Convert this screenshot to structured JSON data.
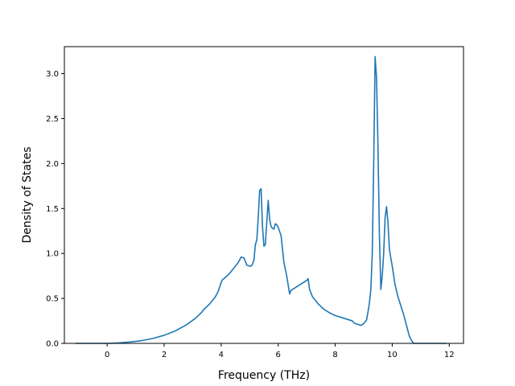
{
  "chart_data": {
    "type": "line",
    "title": "",
    "xlabel": "Frequency (THz)",
    "ylabel": "Density of States",
    "xlim": [
      -1.5,
      12.5
    ],
    "ylim": [
      0.0,
      3.3
    ],
    "xticks": [
      0,
      2,
      4,
      6,
      8,
      10,
      12
    ],
    "xtick_labels": [
      "0",
      "2",
      "4",
      "6",
      "8",
      "10",
      "12"
    ],
    "yticks": [
      0.0,
      0.5,
      1.0,
      1.5,
      2.0,
      2.5,
      3.0
    ],
    "ytick_labels": [
      "0.0",
      "0.5",
      "1.0",
      "1.5",
      "2.0",
      "2.5",
      "3.0"
    ],
    "grid": false,
    "series": [
      {
        "color": "#1f77b4",
        "x": [
          -1.1,
          -0.5,
          0.0,
          0.4,
          0.8,
          1.2,
          1.6,
          2.0,
          2.4,
          2.8,
          3.1,
          3.3,
          3.4,
          3.6,
          3.8,
          3.9,
          4.0,
          4.05,
          4.1,
          4.3,
          4.5,
          4.6,
          4.7,
          4.8,
          4.9,
          5.0,
          5.05,
          5.1,
          5.15,
          5.2,
          5.25,
          5.3,
          5.35,
          5.4,
          5.45,
          5.5,
          5.55,
          5.6,
          5.65,
          5.7,
          5.75,
          5.8,
          5.85,
          5.9,
          5.95,
          6.0,
          6.1,
          6.2,
          6.3,
          6.4,
          6.45,
          6.5,
          6.6,
          6.8,
          7.0,
          7.05,
          7.1,
          7.2,
          7.4,
          7.6,
          7.8,
          8.0,
          8.2,
          8.4,
          8.6,
          8.65,
          8.7,
          8.8,
          8.9,
          9.0,
          9.1,
          9.15,
          9.2,
          9.25,
          9.3,
          9.35,
          9.4,
          9.45,
          9.5,
          9.55,
          9.6,
          9.65,
          9.7,
          9.75,
          9.8,
          9.85,
          9.9,
          9.95,
          10.0,
          10.1,
          10.2,
          10.3,
          10.4,
          10.5,
          10.6,
          10.7,
          10.75,
          10.8,
          10.85,
          11.0,
          11.5,
          11.9
        ],
        "y": [
          0.0,
          0.0,
          0.0,
          0.005,
          0.015,
          0.03,
          0.055,
          0.09,
          0.14,
          0.21,
          0.28,
          0.34,
          0.38,
          0.44,
          0.52,
          0.58,
          0.68,
          0.71,
          0.72,
          0.78,
          0.86,
          0.9,
          0.96,
          0.95,
          0.87,
          0.86,
          0.86,
          0.88,
          0.93,
          1.1,
          1.15,
          1.4,
          1.7,
          1.72,
          1.3,
          1.08,
          1.1,
          1.35,
          1.59,
          1.38,
          1.3,
          1.28,
          1.27,
          1.33,
          1.32,
          1.29,
          1.2,
          0.9,
          0.75,
          0.55,
          0.59,
          0.6,
          0.62,
          0.66,
          0.7,
          0.72,
          0.6,
          0.52,
          0.44,
          0.38,
          0.34,
          0.31,
          0.29,
          0.27,
          0.25,
          0.23,
          0.22,
          0.21,
          0.2,
          0.22,
          0.26,
          0.35,
          0.45,
          0.6,
          1.0,
          2.0,
          3.19,
          2.95,
          2.2,
          1.2,
          0.6,
          0.75,
          1.0,
          1.4,
          1.52,
          1.35,
          1.05,
          0.95,
          0.86,
          0.65,
          0.52,
          0.42,
          0.32,
          0.2,
          0.08,
          0.02,
          0.0,
          0.0,
          0.0,
          0.0,
          0.0,
          0.0
        ]
      }
    ]
  }
}
